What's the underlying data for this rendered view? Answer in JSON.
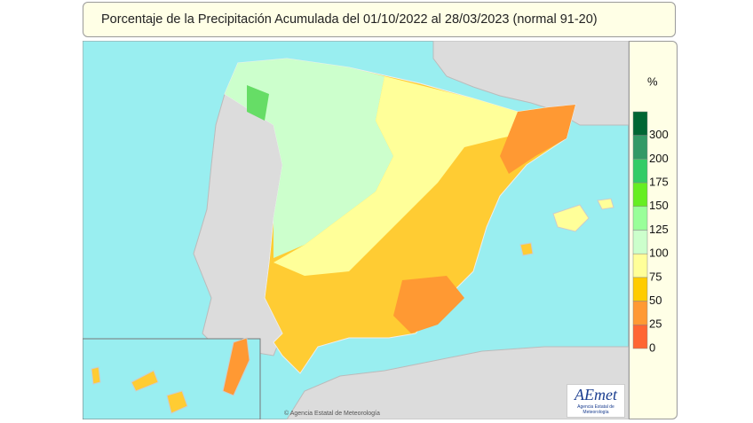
{
  "header": {
    "title": "Porcentaje de la Precipitación Acumulada del 01/10/2022 al 28/03/2023 (normal 91-20)"
  },
  "legend": {
    "unit": "%",
    "ticks": [
      300,
      200,
      175,
      150,
      125,
      100,
      75,
      50,
      25,
      0
    ],
    "colors": [
      "#006633",
      "#339966",
      "#33cc66",
      "#66ee22",
      "#99ff99",
      "#ccffcc",
      "#ffff99",
      "#ffcc00",
      "#ff9933",
      "#ff6633"
    ]
  },
  "logo": {
    "name": "AEmet",
    "subtitle": "Agencia Estatal de Meteorología"
  },
  "credit": "© Agencia Estatal de Meteorología"
}
